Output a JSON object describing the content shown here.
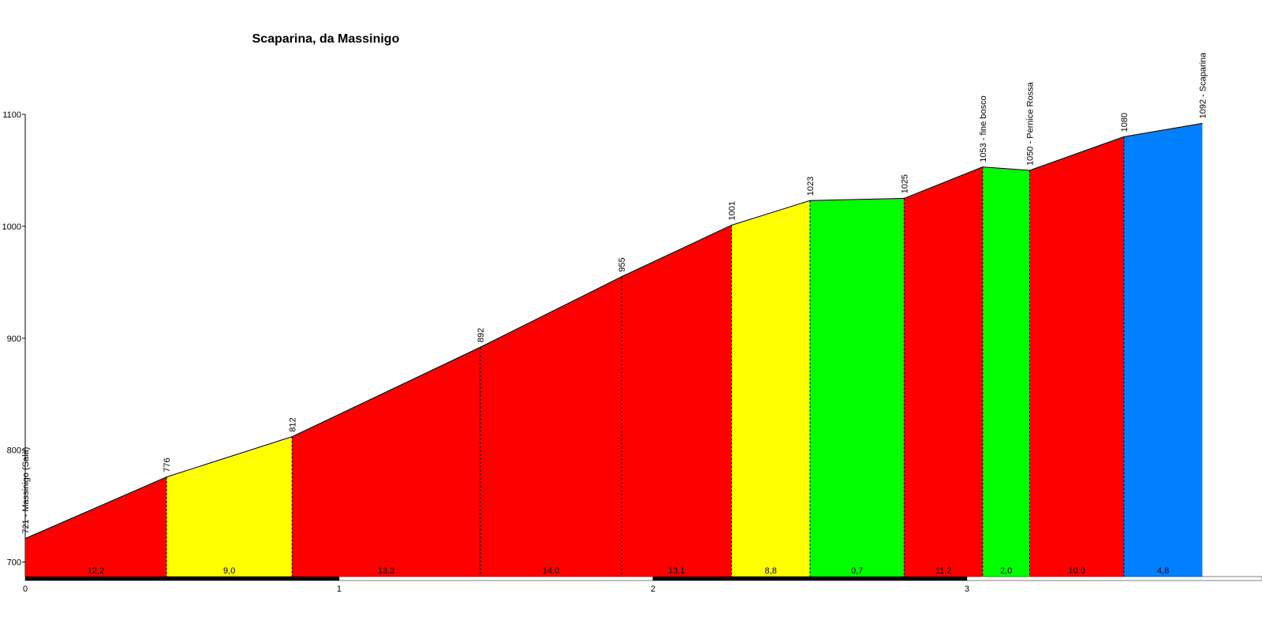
{
  "chart_data": {
    "type": "elevation-profile",
    "title": "Scaparina, da Massinigo",
    "x": [
      0,
      0.45,
      0.85,
      1.45,
      1.9,
      2.25,
      2.5,
      2.8,
      3.05,
      3.2,
      3.5,
      3.75
    ],
    "values": [
      721,
      776,
      812,
      892,
      955,
      1001,
      1023,
      1025,
      1053,
      1050,
      1080,
      1092
    ],
    "value_labels": [
      "721 - Massinigo (Salà)",
      "776",
      "812",
      "892",
      "955",
      "1001",
      "1023",
      "1025",
      "1053 - fine bosco",
      "1050 - Pernice Rossa",
      "1080",
      "1092 - Scaparina"
    ],
    "segments": {
      "values": [
        12.2,
        9.0,
        13.3,
        14.0,
        13.1,
        8.8,
        0.7,
        11.2,
        2.0,
        10.0,
        4.8
      ],
      "value_labels": [
        "12,2",
        "9,0",
        "13,3",
        "14,0",
        "13,1",
        "8,8",
        "0,7",
        "11,2",
        "2,0",
        "10,0",
        "4,8"
      ],
      "colors": [
        "#ff0000",
        "#ffff00",
        "#ff0000",
        "#ff0000",
        "#ff0000",
        "#ffff00",
        "#00ff00",
        "#ff0000",
        "#00ff00",
        "#ff0000",
        "#0080ff"
      ]
    },
    "xlim": [
      0,
      3.94
    ],
    "xticks": [
      0,
      1,
      2,
      3
    ],
    "ylim": [
      687,
      1100
    ],
    "yticks": [
      700,
      800,
      900,
      1000,
      1100
    ]
  }
}
